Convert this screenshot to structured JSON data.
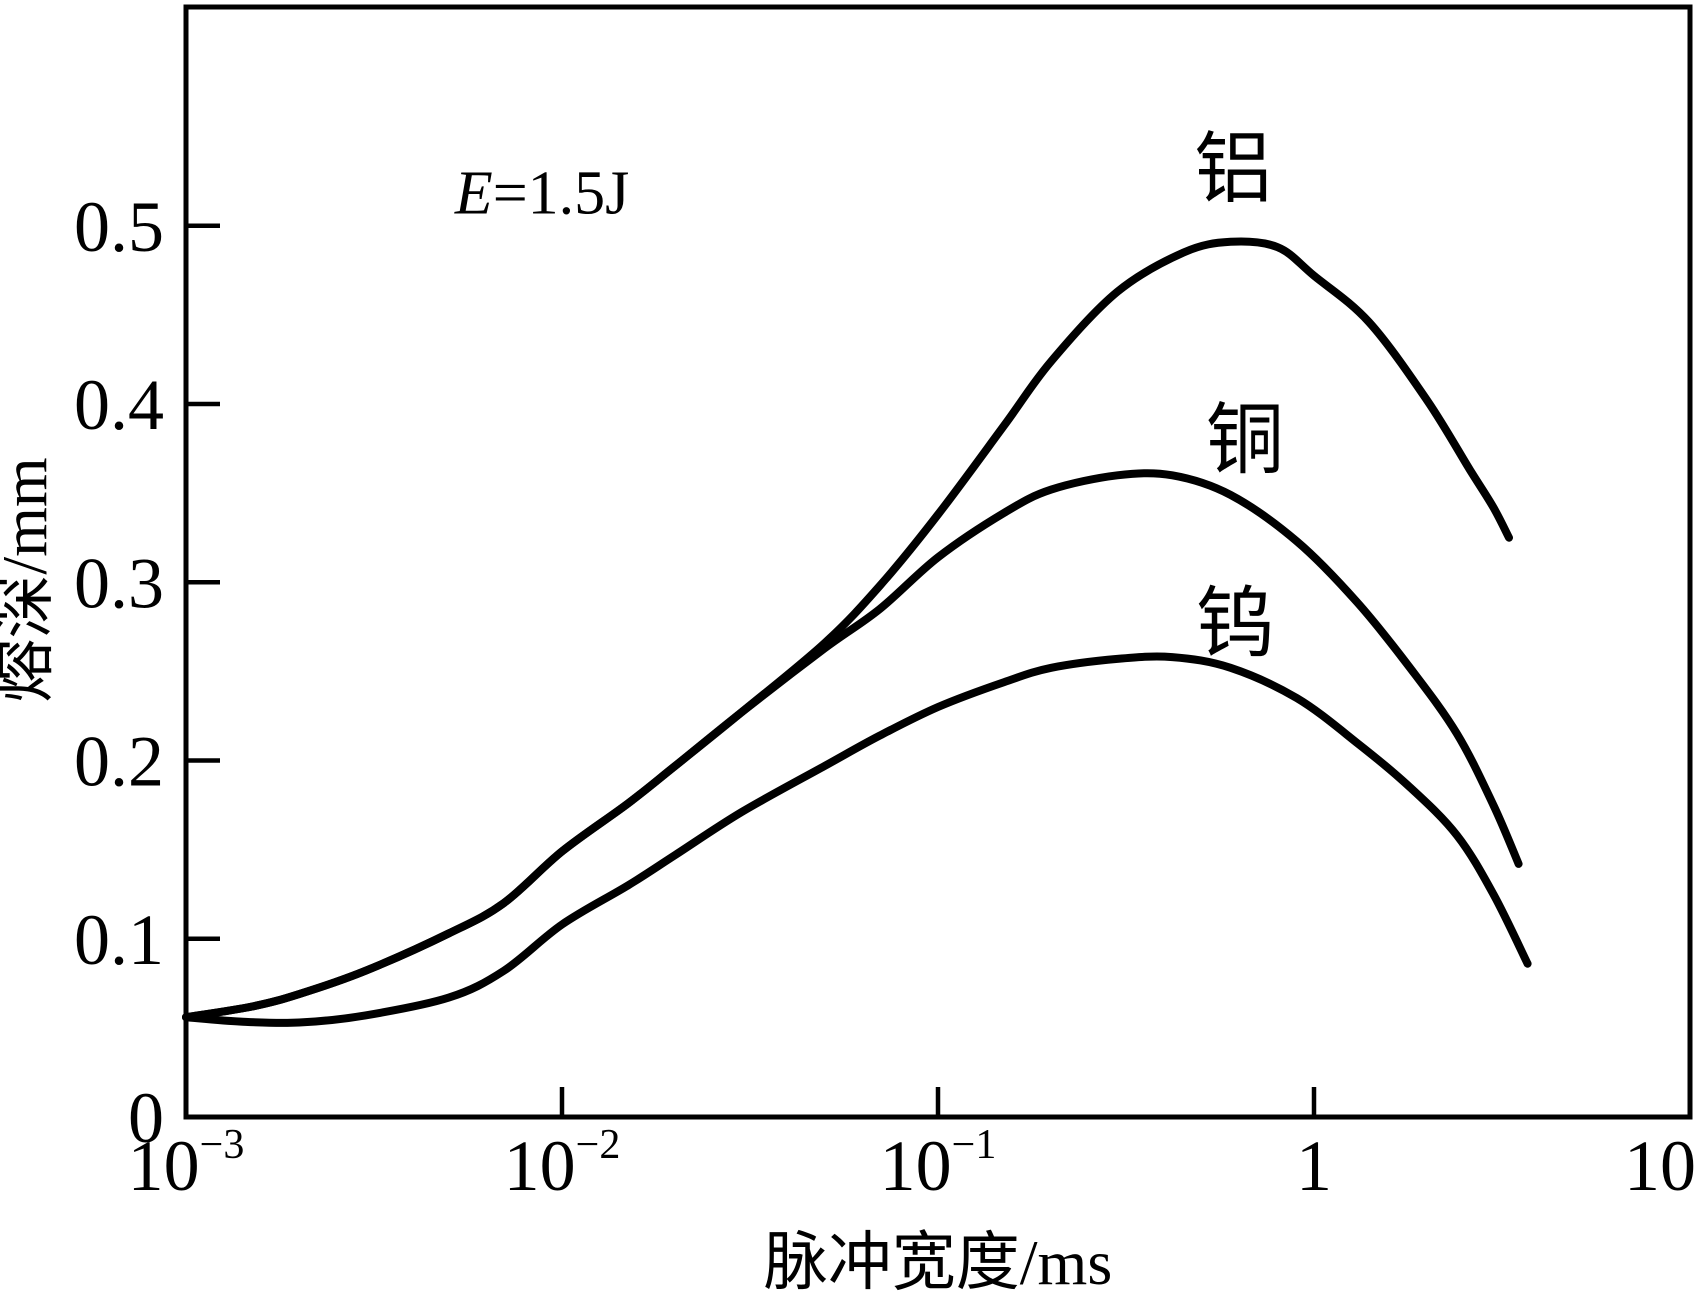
{
  "chart_data": {
    "type": "line",
    "title": "",
    "background": "#ffffff",
    "line_color": "#000000",
    "annotation": {
      "var": "E",
      "rest": "=1.5J",
      "pos": {
        "t": 0.00885,
        "v": 0.507
      }
    },
    "x_axis": {
      "label": "脉冲宽度/ms",
      "scale": "log",
      "min": 0.001,
      "max": 10,
      "ticks": [
        {
          "base": "10",
          "sup": "−3",
          "value": 0.001
        },
        {
          "base": "10",
          "sup": "−2",
          "value": 0.01
        },
        {
          "base": "10",
          "sup": "−1",
          "value": 0.1
        },
        {
          "base": "1",
          "sup": "",
          "value": 1
        },
        {
          "base": "10",
          "sup": "",
          "value": 10
        }
      ]
    },
    "y_axis": {
      "label": "熔深/mm",
      "min": 0,
      "max": 0.62,
      "ticks": [
        {
          "label": "0",
          "value": 0
        },
        {
          "label": "0.1",
          "value": 0.1
        },
        {
          "label": "0.2",
          "value": 0.2
        },
        {
          "label": "0.3",
          "value": 0.3
        },
        {
          "label": "0.4",
          "value": 0.4
        },
        {
          "label": "0.5",
          "value": 0.5
        }
      ]
    },
    "grid": false,
    "legend_position": "labels-on-curves",
    "series": [
      {
        "name": "aluminum",
        "label": "铝",
        "label_pos": {
          "t": 0.61,
          "v": 0.517
        },
        "peak": {
          "t": 0.6,
          "v": 0.491
        },
        "points": [
          [
            0.001,
            0.056
          ],
          [
            0.0015,
            0.062
          ],
          [
            0.002,
            0.069
          ],
          [
            0.003,
            0.082
          ],
          [
            0.005,
            0.103
          ],
          [
            0.007,
            0.12
          ],
          [
            0.01,
            0.149
          ],
          [
            0.015,
            0.176
          ],
          [
            0.02,
            0.197
          ],
          [
            0.03,
            0.227
          ],
          [
            0.05,
            0.266
          ],
          [
            0.07,
            0.298
          ],
          [
            0.1,
            0.338
          ],
          [
            0.15,
            0.388
          ],
          [
            0.2,
            0.424
          ],
          [
            0.3,
            0.463
          ],
          [
            0.45,
            0.485
          ],
          [
            0.6,
            0.491
          ],
          [
            0.8,
            0.488
          ],
          [
            1.0,
            0.472
          ],
          [
            1.4,
            0.446
          ],
          [
            2.0,
            0.402
          ],
          [
            2.6,
            0.363
          ],
          [
            3.0,
            0.342
          ],
          [
            3.3,
            0.325
          ]
        ]
      },
      {
        "name": "copper",
        "label": "铜",
        "label_pos": {
          "t": 0.655,
          "v": 0.365
        },
        "peak": {
          "t": 0.36,
          "v": 0.36
        },
        "points": [
          [
            0.001,
            0.056
          ],
          [
            0.0015,
            0.062
          ],
          [
            0.002,
            0.069
          ],
          [
            0.003,
            0.082
          ],
          [
            0.005,
            0.103
          ],
          [
            0.007,
            0.12
          ],
          [
            0.01,
            0.149
          ],
          [
            0.015,
            0.176
          ],
          [
            0.02,
            0.197
          ],
          [
            0.03,
            0.227
          ],
          [
            0.05,
            0.263
          ],
          [
            0.07,
            0.285
          ],
          [
            0.1,
            0.314
          ],
          [
            0.15,
            0.339
          ],
          [
            0.2,
            0.352
          ],
          [
            0.3,
            0.36
          ],
          [
            0.42,
            0.36
          ],
          [
            0.6,
            0.349
          ],
          [
            0.9,
            0.323
          ],
          [
            1.3,
            0.289
          ],
          [
            1.8,
            0.252
          ],
          [
            2.4,
            0.215
          ],
          [
            3.0,
            0.175
          ],
          [
            3.5,
            0.142
          ]
        ]
      },
      {
        "name": "tungsten",
        "label": "钨",
        "label_pos": {
          "t": 0.617,
          "v": 0.262
        },
        "peak": {
          "t": 0.36,
          "v": 0.258
        },
        "points": [
          [
            0.001,
            0.056
          ],
          [
            0.0014,
            0.0535
          ],
          [
            0.002,
            0.053
          ],
          [
            0.003,
            0.057
          ],
          [
            0.005,
            0.067
          ],
          [
            0.007,
            0.082
          ],
          [
            0.01,
            0.108
          ],
          [
            0.015,
            0.13
          ],
          [
            0.02,
            0.147
          ],
          [
            0.03,
            0.171
          ],
          [
            0.05,
            0.197
          ],
          [
            0.07,
            0.214
          ],
          [
            0.1,
            0.23
          ],
          [
            0.15,
            0.244
          ],
          [
            0.2,
            0.252
          ],
          [
            0.3,
            0.257
          ],
          [
            0.42,
            0.258
          ],
          [
            0.6,
            0.252
          ],
          [
            0.9,
            0.235
          ],
          [
            1.3,
            0.21
          ],
          [
            1.8,
            0.185
          ],
          [
            2.4,
            0.158
          ],
          [
            3.0,
            0.125
          ],
          [
            3.7,
            0.086
          ]
        ]
      }
    ]
  }
}
